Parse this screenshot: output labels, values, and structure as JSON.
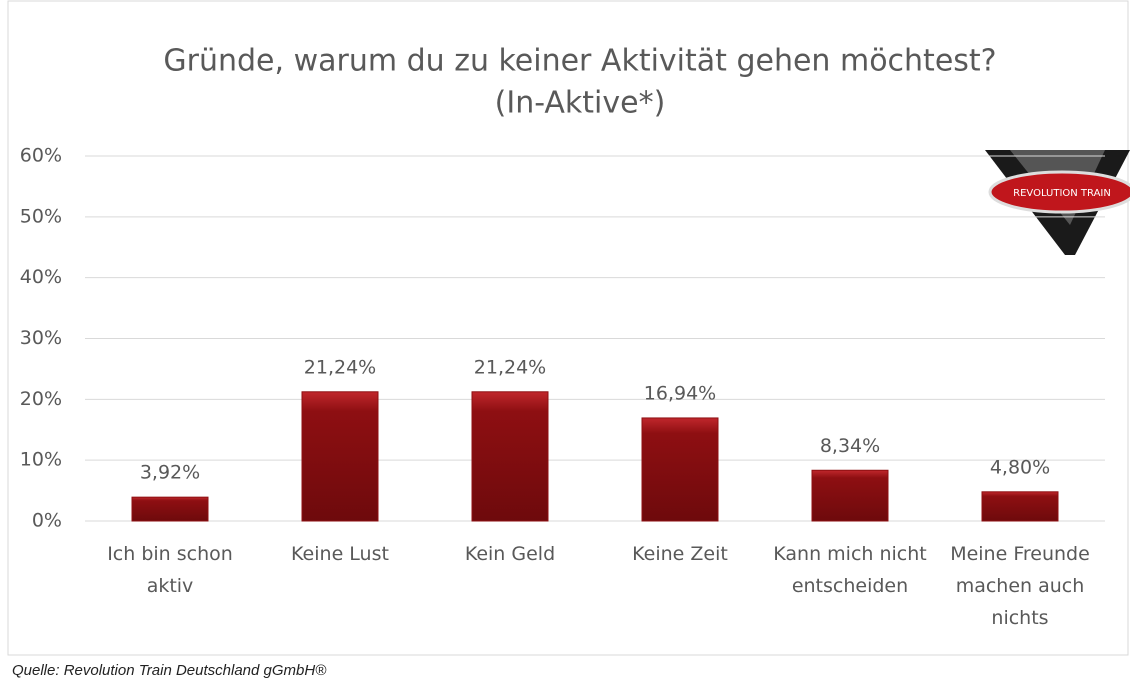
{
  "chart_data": {
    "type": "bar",
    "title": "Gründe, warum du zu keiner Aktivität gehen möchtest?",
    "subtitle": "(In-Aktive*)",
    "categories": [
      "Ich bin schon aktiv",
      "Keine Lust",
      "Kein Geld",
      "Keine Zeit",
      "Kann mich nicht entscheiden",
      "Meine Freunde machen auch nichts"
    ],
    "values": [
      3.92,
      21.24,
      21.24,
      16.94,
      8.34,
      4.8
    ],
    "value_labels": [
      "3,92%",
      "21,24%",
      "21,24%",
      "16,94%",
      "8,34%",
      "4,80%"
    ],
    "color": "#8e0f12",
    "ylim": [
      0,
      60
    ],
    "yticks": [
      {
        "value": 0,
        "label": "0%"
      },
      {
        "value": 10,
        "label": "10%"
      },
      {
        "value": 20,
        "label": "20%"
      },
      {
        "value": 30,
        "label": "30%"
      },
      {
        "value": 40,
        "label": "40%"
      },
      {
        "value": 50,
        "label": "50%"
      },
      {
        "value": 60,
        "label": "60%"
      }
    ],
    "grid": true,
    "logo_text": "REVOLUTION TRAIN",
    "source": "Quelle: Revolution Train Deutschland gGmbH®"
  }
}
